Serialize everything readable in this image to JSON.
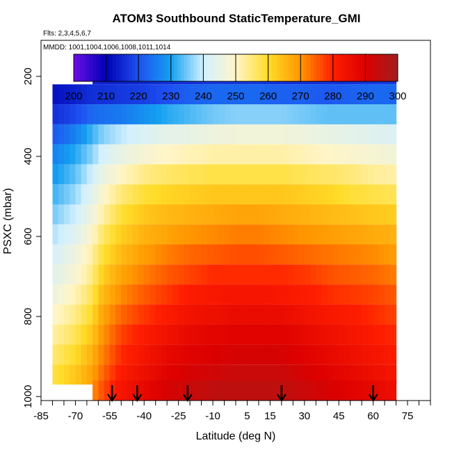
{
  "chart_data": {
    "type": "heatmap",
    "title": "ATOM3 Southbound StaticTemperature_GMI",
    "flights_note": "Flts: 2,3,4,5,6,7",
    "dates_note": "MMDD: 1001,1004,1006,1008,1011,1014",
    "xlabel": "Latitude (deg N)",
    "ylabel": "PSXC (mbar)",
    "xlim": [
      -85,
      85
    ],
    "ylim": [
      1010,
      110
    ],
    "y_reversed": true,
    "x_ticks": [
      -85,
      -70,
      -55,
      -40,
      -25,
      -10,
      5,
      15,
      30,
      45,
      60,
      75
    ],
    "x_minor_ticks": [
      -80,
      -75,
      -65,
      -60,
      -50,
      -45,
      -35,
      -30,
      -20,
      -15,
      -5,
      0,
      10,
      20,
      25,
      35,
      40,
      50,
      55,
      65,
      70,
      80,
      85
    ],
    "y_ticks": [
      200,
      400,
      600,
      800,
      1000
    ],
    "colorbar": {
      "ticks": [
        200,
        210,
        220,
        230,
        240,
        250,
        260,
        270,
        280,
        290,
        300
      ],
      "colors": [
        "#6a0fe6",
        "#0000b4",
        "#1e50f0",
        "#14a0f0",
        "#d2f0ff",
        "#fff5c8",
        "#ffdc28",
        "#ff9600",
        "#ff1e00",
        "#dc0000",
        "#a01e1e"
      ]
    },
    "pressure_levels": [
      195,
      245,
      295,
      345,
      395,
      445,
      495,
      545,
      595,
      645,
      695,
      745,
      795,
      845,
      895,
      945,
      985
    ],
    "latitude_nodes": [
      -80,
      -70,
      -63,
      -58,
      -50,
      -40,
      -30,
      -20,
      -10,
      0,
      10,
      20,
      30,
      40,
      50,
      60,
      70
    ],
    "temperature_grid": [
      [
        null,
        null,
        215,
        214,
        214,
        215,
        216,
        216,
        217,
        217,
        217,
        216,
        216,
        216,
        216,
        217,
        217
      ],
      [
        212,
        214,
        216,
        216,
        217,
        218,
        220,
        222,
        223,
        223,
        223,
        222,
        222,
        221,
        222,
        223,
        223
      ],
      [
        216,
        219,
        223,
        224,
        225,
        228,
        231,
        233,
        235,
        236,
        236,
        236,
        235,
        234,
        234,
        234,
        234
      ],
      [
        221,
        226,
        232,
        236,
        239,
        242,
        244,
        245,
        246,
        247,
        247,
        247,
        246,
        245,
        244,
        243,
        242
      ],
      [
        226,
        231,
        236,
        241,
        245,
        248,
        250,
        251,
        252,
        252,
        252,
        252,
        251,
        250,
        249,
        248,
        247
      ],
      [
        229,
        234,
        240,
        245,
        250,
        254,
        256,
        257,
        258,
        258,
        258,
        258,
        257,
        256,
        255,
        253,
        252
      ],
      [
        232,
        237,
        243,
        249,
        255,
        259,
        261,
        262,
        263,
        263,
        263,
        263,
        262,
        261,
        259,
        258,
        257
      ],
      [
        235,
        240,
        246,
        252,
        259,
        263,
        265,
        266,
        267,
        268,
        268,
        267,
        266,
        265,
        264,
        263,
        262
      ],
      [
        238,
        243,
        249,
        256,
        262,
        266,
        268,
        270,
        271,
        272,
        272,
        271,
        270,
        269,
        268,
        267,
        266
      ],
      [
        241,
        246,
        252,
        259,
        265,
        269,
        272,
        274,
        275,
        276,
        276,
        275,
        274,
        273,
        272,
        271,
        269
      ],
      [
        243,
        248,
        254,
        262,
        268,
        272,
        275,
        277,
        279,
        279,
        279,
        279,
        278,
        276,
        275,
        274,
        272
      ],
      [
        246,
        251,
        257,
        265,
        271,
        275,
        278,
        281,
        282,
        283,
        283,
        282,
        281,
        279,
        278,
        277,
        275
      ],
      [
        249,
        254,
        260,
        268,
        274,
        278,
        281,
        284,
        285,
        286,
        286,
        286,
        284,
        282,
        281,
        279,
        277
      ],
      [
        252,
        257,
        263,
        270,
        277,
        281,
        284,
        287,
        288,
        289,
        289,
        289,
        287,
        285,
        283,
        281,
        279
      ],
      [
        255,
        260,
        266,
        272,
        279,
        283,
        287,
        289,
        290,
        291,
        291,
        291,
        289,
        287,
        285,
        283,
        281
      ],
      [
        258,
        263,
        268,
        274,
        281,
        285,
        289,
        291,
        292,
        293,
        293,
        293,
        291,
        289,
        287,
        285,
        283
      ],
      [
        null,
        null,
        270,
        276,
        283,
        287,
        291,
        293,
        295,
        295,
        295,
        295,
        293,
        291,
        289,
        287,
        285
      ]
    ],
    "arrow_latitudes": [
      -54,
      -43,
      -21,
      20,
      60
    ],
    "grid": false,
    "legend": "colorbar inside plot, top"
  }
}
